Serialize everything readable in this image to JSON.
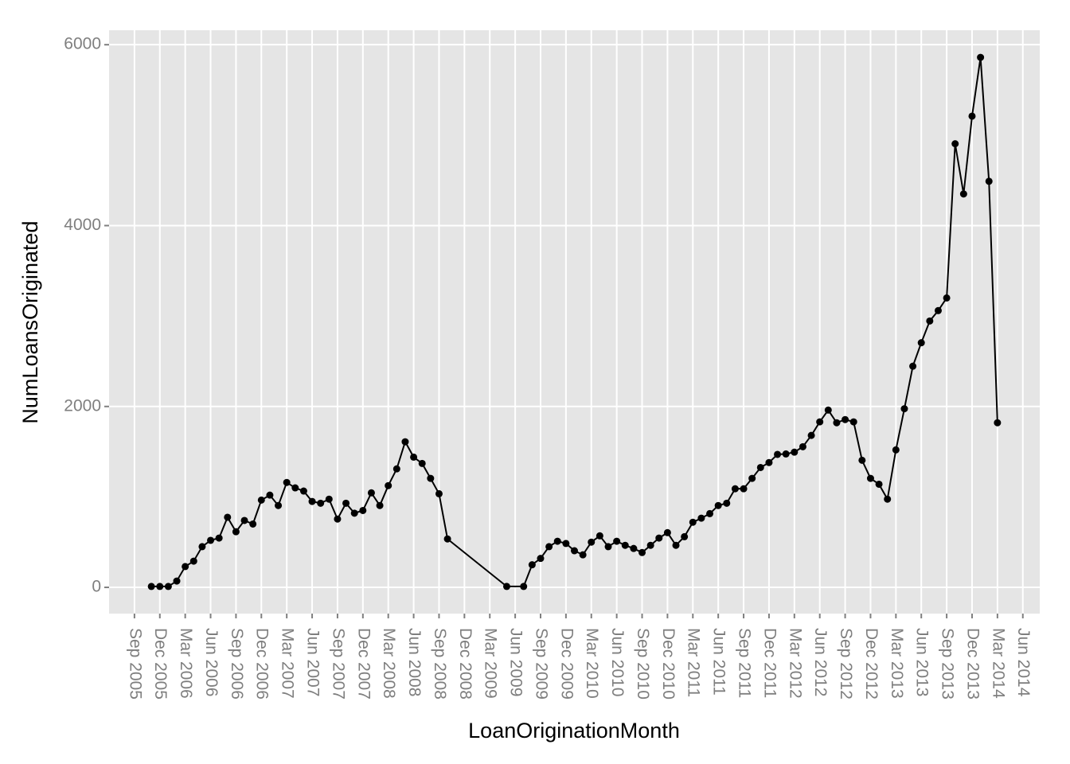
{
  "chart_data": {
    "type": "line",
    "xlabel": "LoanOriginationMonth",
    "ylabel": "NumLoansOriginated",
    "x": [
      "2005-11",
      "2005-12",
      "2006-01",
      "2006-02",
      "2006-03",
      "2006-04",
      "2006-05",
      "2006-06",
      "2006-07",
      "2006-08",
      "2006-09",
      "2006-10",
      "2006-11",
      "2006-12",
      "2007-01",
      "2007-02",
      "2007-03",
      "2007-04",
      "2007-05",
      "2007-06",
      "2007-07",
      "2007-08",
      "2007-09",
      "2007-10",
      "2007-11",
      "2007-12",
      "2008-01",
      "2008-02",
      "2008-03",
      "2008-04",
      "2008-05",
      "2008-06",
      "2008-07",
      "2008-08",
      "2008-09",
      "2008-10",
      "2009-05",
      "2009-07",
      "2009-08",
      "2009-09",
      "2009-10",
      "2009-11",
      "2009-12",
      "2010-01",
      "2010-02",
      "2010-03",
      "2010-04",
      "2010-05",
      "2010-06",
      "2010-07",
      "2010-08",
      "2010-09",
      "2010-10",
      "2010-11",
      "2010-12",
      "2011-01",
      "2011-02",
      "2011-03",
      "2011-04",
      "2011-05",
      "2011-06",
      "2011-07",
      "2011-08",
      "2011-09",
      "2011-10",
      "2011-11",
      "2011-12",
      "2012-01",
      "2012-02",
      "2012-03",
      "2012-04",
      "2012-05",
      "2012-06",
      "2012-07",
      "2012-08",
      "2012-09",
      "2012-10",
      "2012-11",
      "2012-12",
      "2013-01",
      "2013-02",
      "2013-03",
      "2013-04",
      "2013-05",
      "2013-06",
      "2013-07",
      "2013-08",
      "2013-09",
      "2013-10",
      "2013-11",
      "2013-12",
      "2014-01",
      "2014-02",
      "2014-03"
    ],
    "series": [
      {
        "color": "#000000",
        "values": [
          10,
          10,
          10,
          70,
          230,
          290,
          450,
          520,
          545,
          775,
          615,
          740,
          700,
          965,
          1020,
          905,
          1160,
          1100,
          1065,
          950,
          930,
          975,
          755,
          930,
          820,
          850,
          1045,
          905,
          1125,
          1310,
          1610,
          1440,
          1370,
          1205,
          1035,
          535,
          10,
          10,
          250,
          320,
          450,
          510,
          485,
          405,
          360,
          500,
          570,
          450,
          510,
          465,
          430,
          385,
          465,
          545,
          605,
          465,
          560,
          720,
          765,
          815,
          905,
          930,
          1090,
          1090,
          1205,
          1325,
          1380,
          1470,
          1475,
          1495,
          1555,
          1680,
          1830,
          1960,
          1820,
          1855,
          1830,
          1405,
          1205,
          1140,
          975,
          1520,
          1975,
          2445,
          2705,
          2945,
          3060,
          3200,
          4905,
          4350,
          5210,
          5860,
          4490,
          1820
        ]
      }
    ],
    "xlim": [
      "2005-06",
      "2014-08"
    ],
    "xticks": [
      {
        "value": "2005-09",
        "label": "Sep 2005"
      },
      {
        "value": "2005-12",
        "label": "Dec 2005"
      },
      {
        "value": "2006-03",
        "label": "Mar 2006"
      },
      {
        "value": "2006-06",
        "label": "Jun 2006"
      },
      {
        "value": "2006-09",
        "label": "Sep 2006"
      },
      {
        "value": "2006-12",
        "label": "Dec 2006"
      },
      {
        "value": "2007-03",
        "label": "Mar 2007"
      },
      {
        "value": "2007-06",
        "label": "Jun 2007"
      },
      {
        "value": "2007-09",
        "label": "Sep 2007"
      },
      {
        "value": "2007-12",
        "label": "Dec 2007"
      },
      {
        "value": "2008-03",
        "label": "Mar 2008"
      },
      {
        "value": "2008-06",
        "label": "Jun 2008"
      },
      {
        "value": "2008-09",
        "label": "Sep 2008"
      },
      {
        "value": "2008-12",
        "label": "Dec 2008"
      },
      {
        "value": "2009-03",
        "label": "Mar 2009"
      },
      {
        "value": "2009-06",
        "label": "Jun 2009"
      },
      {
        "value": "2009-09",
        "label": "Sep 2009"
      },
      {
        "value": "2009-12",
        "label": "Dec 2009"
      },
      {
        "value": "2010-03",
        "label": "Mar 2010"
      },
      {
        "value": "2010-06",
        "label": "Jun 2010"
      },
      {
        "value": "2010-09",
        "label": "Sep 2010"
      },
      {
        "value": "2010-12",
        "label": "Dec 2010"
      },
      {
        "value": "2011-03",
        "label": "Mar 2011"
      },
      {
        "value": "2011-06",
        "label": "Jun 2011"
      },
      {
        "value": "2011-09",
        "label": "Sep 2011"
      },
      {
        "value": "2011-12",
        "label": "Dec 2011"
      },
      {
        "value": "2012-03",
        "label": "Mar 2012"
      },
      {
        "value": "2012-06",
        "label": "Jun 2012"
      },
      {
        "value": "2012-09",
        "label": "Sep 2012"
      },
      {
        "value": "2012-12",
        "label": "Dec 2012"
      },
      {
        "value": "2013-03",
        "label": "Mar 2013"
      },
      {
        "value": "2013-06",
        "label": "Jun 2013"
      },
      {
        "value": "2013-09",
        "label": "Sep 2013"
      },
      {
        "value": "2013-12",
        "label": "Dec 2013"
      },
      {
        "value": "2014-03",
        "label": "Mar 2014"
      },
      {
        "value": "2014-06",
        "label": "Jun 2014"
      }
    ],
    "ylim": [
      -290,
      6160
    ],
    "yticks": [
      0,
      2000,
      4000,
      6000
    ],
    "grid": true
  }
}
